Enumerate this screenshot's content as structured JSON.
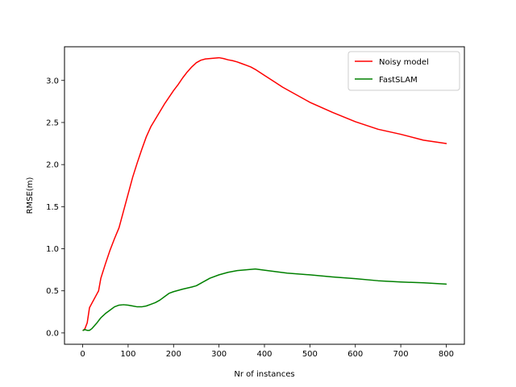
{
  "chart_data": {
    "type": "line",
    "title": "",
    "xlabel": "Nr of instances",
    "ylabel": "RMSE(m)",
    "xlim": [
      -40,
      840
    ],
    "ylim": [
      -0.135,
      3.4
    ],
    "xticks": [
      0,
      100,
      200,
      300,
      400,
      500,
      600,
      700,
      800
    ],
    "yticks": [
      0.0,
      0.5,
      1.0,
      1.5,
      2.0,
      2.5,
      3.0
    ],
    "grid": false,
    "legend_position": "top-right",
    "series": [
      {
        "name": "Noisy model",
        "color": "#ff0000",
        "x": [
          1,
          5,
          10,
          15,
          20,
          30,
          35,
          40,
          50,
          60,
          70,
          80,
          90,
          100,
          110,
          120,
          130,
          140,
          150,
          160,
          180,
          200,
          210,
          220,
          230,
          240,
          250,
          260,
          270,
          280,
          290,
          300,
          310,
          320,
          330,
          340,
          350,
          360,
          370,
          380,
          400,
          420,
          440,
          460,
          480,
          500,
          550,
          600,
          650,
          700,
          750,
          800
        ],
        "y": [
          0.03,
          0.05,
          0.12,
          0.3,
          0.35,
          0.45,
          0.5,
          0.65,
          0.82,
          0.98,
          1.12,
          1.25,
          1.45,
          1.65,
          1.85,
          2.02,
          2.18,
          2.33,
          2.45,
          2.54,
          2.72,
          2.88,
          2.95,
          3.03,
          3.1,
          3.16,
          3.21,
          3.24,
          3.255,
          3.26,
          3.265,
          3.27,
          3.26,
          3.245,
          3.235,
          3.22,
          3.2,
          3.18,
          3.16,
          3.13,
          3.06,
          2.99,
          2.92,
          2.86,
          2.8,
          2.74,
          2.62,
          2.51,
          2.42,
          2.36,
          2.29,
          2.25
        ]
      },
      {
        "name": "FastSLAM",
        "color": "#008000",
        "x": [
          1,
          5,
          10,
          15,
          20,
          30,
          40,
          50,
          60,
          70,
          80,
          90,
          100,
          110,
          120,
          130,
          140,
          150,
          160,
          170,
          180,
          190,
          200,
          220,
          240,
          250,
          260,
          270,
          280,
          300,
          320,
          340,
          360,
          380,
          400,
          450,
          500,
          550,
          600,
          650,
          700,
          750,
          800
        ],
        "y": [
          0.03,
          0.04,
          0.03,
          0.03,
          0.05,
          0.11,
          0.18,
          0.23,
          0.27,
          0.31,
          0.33,
          0.335,
          0.33,
          0.32,
          0.31,
          0.31,
          0.32,
          0.34,
          0.36,
          0.39,
          0.43,
          0.47,
          0.49,
          0.52,
          0.545,
          0.56,
          0.59,
          0.62,
          0.65,
          0.69,
          0.72,
          0.74,
          0.75,
          0.76,
          0.745,
          0.71,
          0.69,
          0.665,
          0.645,
          0.62,
          0.605,
          0.595,
          0.58
        ]
      }
    ]
  }
}
